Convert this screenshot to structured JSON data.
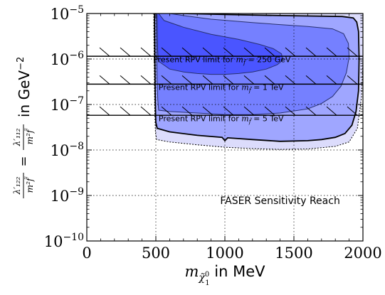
{
  "chart_data": {
    "type": "area",
    "title": "",
    "xlabel": {
      "main": "m",
      "sub_outer": "χ̃",
      "sub_sup": "0",
      "sub_sub": "1",
      "unit": " in MeV"
    },
    "ylabel": {
      "frac1_num": "λ′₁₂₂",
      "frac1_den": "m²f̃",
      "equals": "=",
      "frac2_num": "λ′₁₁₂",
      "frac2_den": "m²f̃",
      "unit": "in GeV",
      "unit_exp": "−2"
    },
    "xlim": [
      0,
      2000
    ],
    "ylim": [
      1e-10,
      1e-05
    ],
    "yscale": "log",
    "grid": true,
    "x_ticks": [
      {
        "value": 0,
        "label": "0"
      },
      {
        "value": 500,
        "label": "500"
      },
      {
        "value": 1000,
        "label": "1000"
      },
      {
        "value": 1500,
        "label": "1500"
      },
      {
        "value": 2000,
        "label": "2000"
      }
    ],
    "y_ticks": [
      {
        "value": 1e-10,
        "base": "10",
        "exp": "−10"
      },
      {
        "value": 1e-09,
        "base": "10",
        "exp": "−9"
      },
      {
        "value": 1e-08,
        "base": "10",
        "exp": "−8"
      },
      {
        "value": 1e-07,
        "base": "10",
        "exp": "−7"
      },
      {
        "value": 1e-06,
        "base": "10",
        "exp": "−6"
      },
      {
        "value": 1e-05,
        "base": "10",
        "exp": "−5"
      }
    ],
    "rpv_limits": [
      {
        "y": 1.15e-06,
        "label_prefix": "Present RPV limit for ",
        "label_m": "m",
        "label_sub": "f̃",
        "label_value": " = 250 GeV",
        "label_x": 480,
        "label_y": 8.5e-07
      },
      {
        "y": 2.8e-07,
        "label_prefix": "Present RPV limit for ",
        "label_m": "m",
        "label_sub": "f̃",
        "label_value": " = 1 TeV",
        "label_x": 520,
        "label_y": 2.1e-07
      },
      {
        "y": 5.8e-08,
        "label_prefix": "Present RPV limit for ",
        "label_m": "m",
        "label_sub": "f̃",
        "label_value": " = 5 TeV",
        "label_x": 520,
        "label_y": 4.3e-08
      }
    ],
    "annotation": {
      "text": "FASER Sensitivity Reach",
      "x": 1400,
      "y": 6.5e-10
    },
    "regions": [
      {
        "name": "",
        "fill": "#dcdcfc",
        "stroke": "#000000",
        "dashed": true,
        "polygon": [
          [
            485,
            1e-05
          ],
          [
            486,
            3e-06
          ],
          [
            488,
            8e-07
          ],
          [
            490,
            2e-07
          ],
          [
            493,
            6e-08
          ],
          [
            497,
            2.5e-08
          ],
          [
            505,
            1.7e-08
          ],
          [
            600,
            1.5e-08
          ],
          [
            800,
            1.3e-08
          ],
          [
            1000,
            1.15e-08
          ],
          [
            1200,
            1.07e-08
          ],
          [
            1400,
            1.03e-08
          ],
          [
            1600,
            1.05e-08
          ],
          [
            1800,
            1.2e-08
          ],
          [
            1900,
            1.5e-08
          ],
          [
            1960,
            3e-08
          ],
          [
            1990,
            1.5e-07
          ],
          [
            2000,
            1e-06
          ],
          [
            2000,
            1e-05
          ]
        ]
      },
      {
        "name": "",
        "fill": "#9fa6ff",
        "stroke": "#000000",
        "dashed": false,
        "polygon": [
          [
            490,
            1e-05
          ],
          [
            491,
            3e-06
          ],
          [
            493,
            8e-07
          ],
          [
            495,
            2e-07
          ],
          [
            497,
            8e-08
          ],
          [
            500,
            4e-08
          ],
          [
            510,
            3e-08
          ],
          [
            600,
            2.5e-08
          ],
          [
            800,
            2.1e-08
          ],
          [
            980,
            1.9e-08
          ],
          [
            1000,
            1.6e-08
          ],
          [
            1020,
            1.85e-08
          ],
          [
            1200,
            1.7e-08
          ],
          [
            1400,
            1.55e-08
          ],
          [
            1600,
            1.6e-08
          ],
          [
            1700,
            1.7e-08
          ],
          [
            1800,
            1.9e-08
          ],
          [
            1870,
            2.3e-08
          ],
          [
            1920,
            3.5e-08
          ],
          [
            1950,
            7e-08
          ],
          [
            1968,
            2e-07
          ],
          [
            1972,
            1e-06
          ],
          [
            1968,
            4e-06
          ],
          [
            1955,
            6.5e-06
          ],
          [
            1930,
            8e-06
          ],
          [
            1850,
            8.6e-06
          ],
          [
            1400,
            9e-06
          ],
          [
            1000,
            9.5e-06
          ],
          [
            700,
            1e-05
          ]
        ]
      },
      {
        "name": "",
        "fill": "#7580ff",
        "stroke": "#283070",
        "dashed": false,
        "polygon": [
          [
            503,
            1e-05
          ],
          [
            504,
            3e-06
          ],
          [
            507,
            9e-07
          ],
          [
            510,
            3e-07
          ],
          [
            514,
            1.3e-07
          ],
          [
            520,
            7.5e-08
          ],
          [
            600,
            7e-08
          ],
          [
            800,
            6.5e-08
          ],
          [
            1000,
            6e-08
          ],
          [
            1200,
            6e-08
          ],
          [
            1400,
            6.5e-08
          ],
          [
            1600,
            8e-08
          ],
          [
            1700,
            1.05e-07
          ],
          [
            1780,
            1.5e-07
          ],
          [
            1840,
            2.5e-07
          ],
          [
            1880,
            5e-07
          ],
          [
            1900,
            1.1e-06
          ],
          [
            1895,
            2.2e-06
          ],
          [
            1860,
            3.6e-06
          ],
          [
            1780,
            4.6e-06
          ],
          [
            1600,
            5.2e-06
          ],
          [
            1400,
            5.7e-06
          ],
          [
            1200,
            6.3e-06
          ],
          [
            900,
            7.5e-06
          ],
          [
            700,
            9e-06
          ],
          [
            600,
            1e-05
          ]
        ]
      },
      {
        "name": "",
        "fill": "#4a55ff",
        "stroke": "#283070",
        "dashed": false,
        "polygon": [
          [
            510,
            1e-05
          ],
          [
            511,
            4e-06
          ],
          [
            513,
            1.6e-06
          ],
          [
            518,
            9e-07
          ],
          [
            600,
            6e-07
          ],
          [
            700,
            5.2e-07
          ],
          [
            800,
            4.8e-07
          ],
          [
            900,
            4.6e-07
          ],
          [
            1000,
            4.6e-07
          ],
          [
            1100,
            4.8e-07
          ],
          [
            1200,
            5.2e-07
          ],
          [
            1300,
            6e-07
          ],
          [
            1380,
            7.5e-07
          ],
          [
            1420,
            9.5e-07
          ],
          [
            1410,
            1.3e-06
          ],
          [
            1350,
            1.7e-06
          ],
          [
            1250,
            2.1e-06
          ],
          [
            1100,
            2.7e-06
          ],
          [
            900,
            3.5e-06
          ],
          [
            700,
            5e-06
          ],
          [
            560,
            7e-06
          ],
          [
            520,
            1e-05
          ]
        ]
      }
    ]
  }
}
